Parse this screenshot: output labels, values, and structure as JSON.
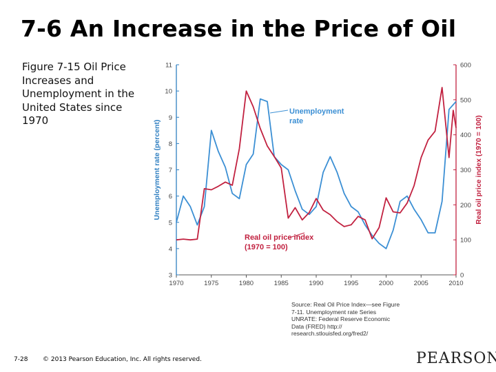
{
  "slide": {
    "title": "7-6 An Increase in the Price of Oil",
    "caption": "Figure 7-15  Oil Price Increases and Unemployment in the United States since 1970",
    "source": "Source: Real Oil Price Index—see Figure 7-11. Unemployment rate Series UNRATE: Federal Reserve Economic Data (FRED) http:// research.stlouisfed.org/fred2/",
    "page_number": "7-28",
    "copyright": "© 2013 Pearson Education, Inc. All rights reserved.",
    "logo": "PEARSON"
  },
  "chart_data": {
    "type": "line",
    "title": "",
    "xlabel": "",
    "x_ticks": [
      "1970",
      "1975",
      "1980",
      "1985",
      "1990",
      "1995",
      "2000",
      "2005",
      "2010"
    ],
    "xlim": [
      1970,
      2010
    ],
    "left_axis": {
      "label": "Unemployment rate (percent)",
      "lim": [
        3,
        11
      ],
      "ticks": [
        "3",
        "4",
        "5",
        "6",
        "7",
        "8",
        "9",
        "10",
        "11"
      ],
      "color": "#2f7fc1"
    },
    "right_axis": {
      "label": "Real oil price index (1970 = 100)",
      "lim": [
        0,
        600
      ],
      "ticks": [
        "0",
        "100",
        "200",
        "300",
        "400",
        "500",
        "600"
      ],
      "color": "#c1203f"
    },
    "series": [
      {
        "name": "Unemployment rate",
        "label_lines": [
          "Unemployment",
          "rate"
        ],
        "axis": "left",
        "color": "#3b8fd4",
        "points": [
          [
            1970,
            5.0
          ],
          [
            1971,
            6.0
          ],
          [
            1972,
            5.6
          ],
          [
            1973,
            4.9
          ],
          [
            1974,
            5.6
          ],
          [
            1975,
            8.5
          ],
          [
            1976,
            7.7
          ],
          [
            1977,
            7.1
          ],
          [
            1978,
            6.1
          ],
          [
            1979,
            5.9
          ],
          [
            1980,
            7.2
          ],
          [
            1981,
            7.6
          ],
          [
            1982,
            9.7
          ],
          [
            1983,
            9.6
          ],
          [
            1984,
            7.5
          ],
          [
            1985,
            7.2
          ],
          [
            1986,
            7.0
          ],
          [
            1987,
            6.2
          ],
          [
            1988,
            5.5
          ],
          [
            1989,
            5.3
          ],
          [
            1990,
            5.6
          ],
          [
            1991,
            6.9
          ],
          [
            1992,
            7.5
          ],
          [
            1993,
            6.9
          ],
          [
            1994,
            6.1
          ],
          [
            1995,
            5.6
          ],
          [
            1996,
            5.4
          ],
          [
            1997,
            4.9
          ],
          [
            1998,
            4.5
          ],
          [
            1999,
            4.2
          ],
          [
            2000,
            4.0
          ],
          [
            2001,
            4.7
          ],
          [
            2002,
            5.8
          ],
          [
            2003,
            6.0
          ],
          [
            2004,
            5.5
          ],
          [
            2005,
            5.1
          ],
          [
            2006,
            4.6
          ],
          [
            2007,
            4.6
          ],
          [
            2008,
            5.8
          ],
          [
            2009,
            9.3
          ],
          [
            2010,
            9.6
          ]
        ]
      },
      {
        "name": "Real oil price index (1970 = 100)",
        "label_lines": [
          "Real oil price index",
          "(1970 = 100)"
        ],
        "axis": "right",
        "color": "#c1203f",
        "points": [
          [
            1970,
            100
          ],
          [
            1971,
            102
          ],
          [
            1972,
            100
          ],
          [
            1973,
            102
          ],
          [
            1974,
            246
          ],
          [
            1975,
            243
          ],
          [
            1976,
            253
          ],
          [
            1977,
            265
          ],
          [
            1978,
            256
          ],
          [
            1979,
            360
          ],
          [
            1980,
            525
          ],
          [
            1981,
            480
          ],
          [
            1982,
            418
          ],
          [
            1983,
            368
          ],
          [
            1984,
            338
          ],
          [
            1985,
            305
          ],
          [
            1986,
            162
          ],
          [
            1987,
            192
          ],
          [
            1988,
            157
          ],
          [
            1989,
            178
          ],
          [
            1990,
            218
          ],
          [
            1991,
            185
          ],
          [
            1992,
            172
          ],
          [
            1993,
            152
          ],
          [
            1994,
            138
          ],
          [
            1995,
            143
          ],
          [
            1996,
            167
          ],
          [
            1997,
            157
          ],
          [
            1998,
            103
          ],
          [
            1999,
            135
          ],
          [
            2000,
            220
          ],
          [
            2001,
            180
          ],
          [
            2002,
            177
          ],
          [
            2003,
            205
          ],
          [
            2004,
            255
          ],
          [
            2005,
            335
          ],
          [
            2006,
            385
          ],
          [
            2007,
            410
          ],
          [
            2008,
            535
          ],
          [
            2009,
            335
          ],
          [
            2009.6,
            470
          ],
          [
            2010,
            420
          ]
        ]
      }
    ]
  }
}
